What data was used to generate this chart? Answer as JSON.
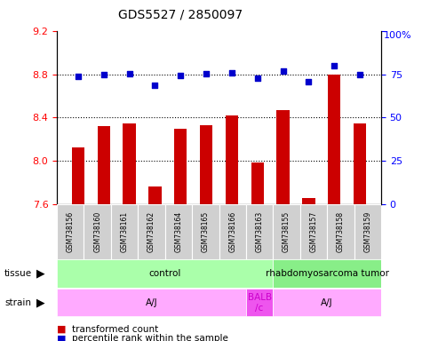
{
  "title": "GDS5527 / 2850097",
  "samples": [
    "GSM738156",
    "GSM738160",
    "GSM738161",
    "GSM738162",
    "GSM738164",
    "GSM738165",
    "GSM738166",
    "GSM738163",
    "GSM738155",
    "GSM738157",
    "GSM738158",
    "GSM738159"
  ],
  "transformed_count": [
    8.13,
    8.32,
    8.35,
    7.77,
    8.3,
    8.33,
    8.42,
    7.99,
    8.47,
    7.66,
    8.8,
    8.35
  ],
  "percentile_rank": [
    73.5,
    75.0,
    75.5,
    68.5,
    74.0,
    75.2,
    76.0,
    72.5,
    77.0,
    70.5,
    80.0,
    74.8
  ],
  "ylim_left": [
    7.6,
    9.2
  ],
  "ylim_right": [
    0,
    100
  ],
  "yticks_left": [
    7.6,
    8.0,
    8.4,
    8.8,
    9.2
  ],
  "yticks_right": [
    0,
    25,
    50,
    75,
    100
  ],
  "bar_color": "#cc0000",
  "dot_color": "#0000cc",
  "tissue_data": [
    {
      "text": "control",
      "start": 0,
      "end": 7,
      "color": "#aaffaa"
    },
    {
      "text": "rhabdomyosarcoma tumor",
      "start": 8,
      "end": 11,
      "color": "#88ee88"
    }
  ],
  "strain_data": [
    {
      "text": "A/J",
      "start": 0,
      "end": 6,
      "color": "#ffaaff"
    },
    {
      "text": "BALB\n/c",
      "start": 7,
      "end": 7,
      "color": "#ee55ee"
    },
    {
      "text": "A/J",
      "start": 8,
      "end": 11,
      "color": "#ffaaff"
    }
  ],
  "legend_bar_label": "transformed count",
  "legend_dot_label": "percentile rank within the sample",
  "tissue_row_label": "tissue",
  "strain_row_label": "strain",
  "sample_box_color": "#d0d0d0",
  "grid_dotted_vals": [
    8.0,
    8.4,
    8.8
  ],
  "plot_bg": "#ffffff",
  "title_color": "#000000",
  "title_fontsize": 10,
  "bar_width": 0.5
}
